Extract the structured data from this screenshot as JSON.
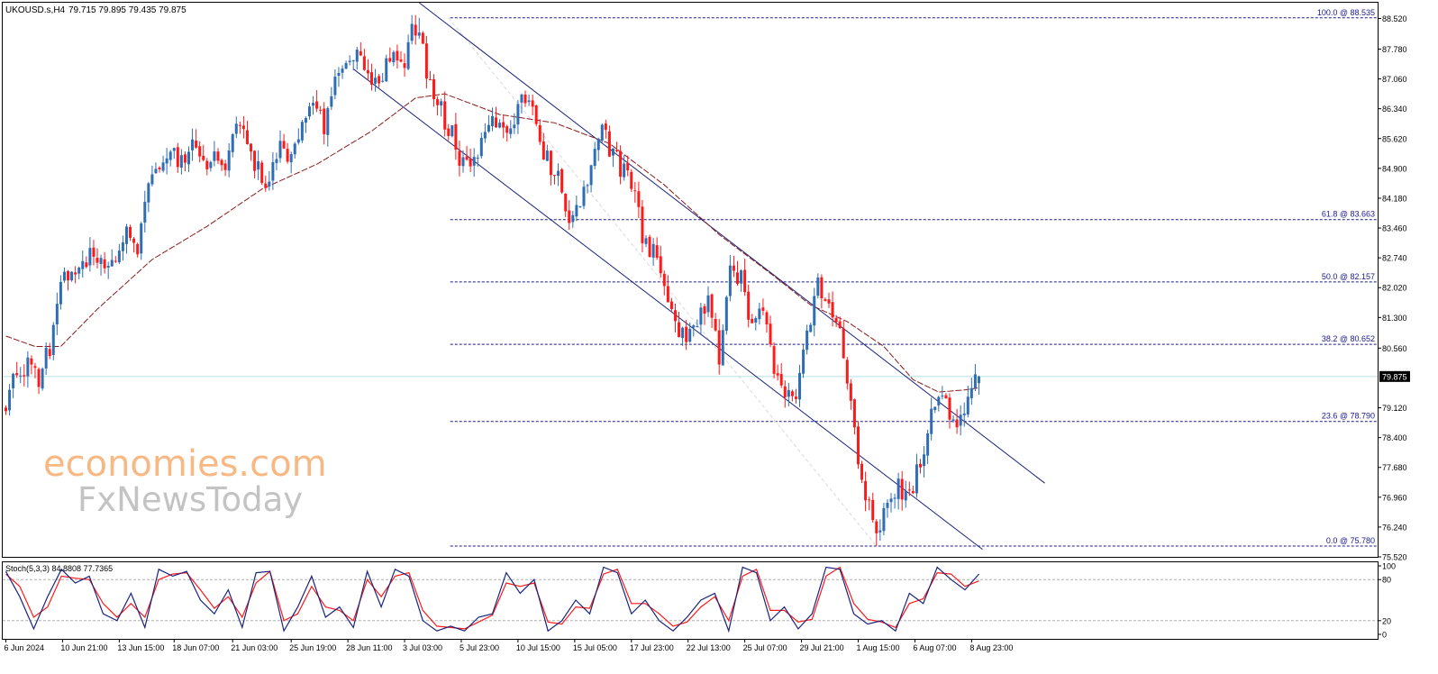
{
  "header": {
    "symbol": "UKOUSD.s,H4",
    "ohlc": "79.715 79.895 79.435 79.875"
  },
  "watermark": {
    "line1": "economies.com",
    "line2": "FxNewsToday"
  },
  "colors": {
    "bull": "#2f6db5",
    "bear": "#ff1a1a",
    "ma": "#8b1a1a",
    "channel": "#1a237e",
    "fib": "#1a1a8c",
    "bid_line": "#b8dfe6",
    "stoch_main": "#1a237e",
    "stoch_signal": "#ff1a1a",
    "watermark_orange": "#f5a05a",
    "watermark_gray": "#b8b8b8"
  },
  "chart_data": [
    {
      "type": "candlestick",
      "timeframe": "H4",
      "ylim": [
        75.52,
        88.9
      ],
      "y_ticks": [
        "88.520",
        "87.780",
        "87.060",
        "86.340",
        "85.620",
        "84.900",
        "84.180",
        "83.460",
        "82.740",
        "82.020",
        "81.300",
        "80.560",
        "79.120",
        "78.400",
        "77.680",
        "76.960",
        "76.240",
        "75.520"
      ],
      "current_price": "79.875",
      "x_ticks": [
        "6 Jun 2024",
        "10 Jun 21:00",
        "13 Jun 15:00",
        "18 Jun 07:00",
        "21 Jun 03:00",
        "25 Jun 19:00",
        "28 Jun 11:00",
        "3 Jul 03:00",
        "5 Jul 23:00",
        "10 Jul 15:00",
        "15 Jul 05:00",
        "17 Jul 23:00",
        "22 Jul 13:00",
        "25 Jul 07:00",
        "29 Jul 21:00",
        "1 Aug 15:00",
        "6 Aug 07:00",
        "8 Aug 23:00"
      ],
      "fibonacci": [
        {
          "label": "100.0 @ 88.535",
          "price": 88.535
        },
        {
          "label": "61.8 @ 83.663",
          "price": 83.663
        },
        {
          "label": "50.0 @ 82.157",
          "price": 82.157
        },
        {
          "label": "38.2 @ 80.652",
          "price": 80.652
        },
        {
          "label": "23.6 @ 78.790",
          "price": 78.79
        },
        {
          "label": "0.0 @ 75.780",
          "price": 75.78
        }
      ],
      "close_path": [
        [
          0,
          79.2
        ],
        [
          3,
          79.9
        ],
        [
          6,
          80.2
        ],
        [
          9,
          79.7
        ],
        [
          12,
          80.6
        ],
        [
          15,
          82.2
        ],
        [
          18,
          82.6
        ],
        [
          21,
          82.4
        ],
        [
          24,
          83.0
        ],
        [
          27,
          82.3
        ],
        [
          30,
          82.6
        ],
        [
          33,
          83.4
        ],
        [
          36,
          82.8
        ],
        [
          39,
          84.5
        ],
        [
          42,
          84.9
        ],
        [
          45,
          85.3
        ],
        [
          48,
          85.0
        ],
        [
          51,
          85.5
        ],
        [
          54,
          85.1
        ],
        [
          57,
          85.2
        ],
        [
          60,
          84.9
        ],
        [
          63,
          85.8
        ],
        [
          66,
          85.5
        ],
        [
          69,
          84.9
        ],
        [
          72,
          84.6
        ],
        [
          75,
          85.3
        ],
        [
          78,
          85.0
        ],
        [
          81,
          85.9
        ],
        [
          84,
          86.6
        ],
        [
          87,
          85.8
        ],
        [
          90,
          87.0
        ],
        [
          93,
          87.4
        ],
        [
          96,
          87.6
        ],
        [
          99,
          87.1
        ],
        [
          102,
          86.9
        ],
        [
          105,
          87.7
        ],
        [
          108,
          87.3
        ],
        [
          111,
          88.2
        ],
        [
          113,
          88.4
        ],
        [
          115,
          87.2
        ],
        [
          118,
          86.5
        ],
        [
          121,
          85.9
        ],
        [
          124,
          85.2
        ],
        [
          127,
          84.7
        ],
        [
          130,
          85.4
        ],
        [
          133,
          86.0
        ],
        [
          136,
          85.8
        ],
        [
          139,
          86.0
        ],
        [
          142,
          86.7
        ],
        [
          145,
          85.9
        ],
        [
          148,
          85.1
        ],
        [
          151,
          84.6
        ],
        [
          154,
          83.7
        ],
        [
          157,
          84.1
        ],
        [
          160,
          85.0
        ],
        [
          163,
          85.9
        ],
        [
          166,
          85.2
        ],
        [
          169,
          84.8
        ],
        [
          172,
          84.6
        ],
        [
          174,
          83.0
        ],
        [
          177,
          82.9
        ],
        [
          180,
          82.2
        ],
        [
          183,
          81.2
        ],
        [
          186,
          80.8
        ],
        [
          189,
          81.3
        ],
        [
          192,
          81.6
        ],
        [
          195,
          80.3
        ],
        [
          198,
          82.3
        ],
        [
          201,
          82.2
        ],
        [
          204,
          81.0
        ],
        [
          207,
          81.6
        ],
        [
          210,
          80.2
        ],
        [
          213,
          79.4
        ],
        [
          216,
          79.2
        ],
        [
          219,
          80.8
        ],
        [
          222,
          82.3
        ],
        [
          225,
          81.5
        ],
        [
          228,
          80.8
        ],
        [
          230,
          79.9
        ],
        [
          233,
          77.8
        ],
        [
          236,
          76.8
        ],
        [
          238,
          75.9
        ],
        [
          241,
          76.7
        ],
        [
          244,
          77.3
        ],
        [
          247,
          76.9
        ],
        [
          250,
          77.8
        ],
        [
          253,
          78.9
        ],
        [
          256,
          79.4
        ],
        [
          259,
          78.6
        ],
        [
          262,
          79.0
        ],
        [
          264,
          79.6
        ],
        [
          266,
          79.875
        ]
      ],
      "moving_average": [
        [
          0,
          80.85
        ],
        [
          8,
          80.6
        ],
        [
          15,
          80.6
        ],
        [
          25,
          81.5
        ],
        [
          40,
          82.7
        ],
        [
          55,
          83.5
        ],
        [
          70,
          84.4
        ],
        [
          85,
          85.0
        ],
        [
          100,
          85.8
        ],
        [
          112,
          86.6
        ],
        [
          120,
          86.7
        ],
        [
          135,
          86.2
        ],
        [
          150,
          86.0
        ],
        [
          165,
          85.5
        ],
        [
          180,
          84.5
        ],
        [
          195,
          83.3
        ],
        [
          210,
          82.3
        ],
        [
          220,
          81.6
        ],
        [
          230,
          81.2
        ],
        [
          240,
          80.6
        ],
        [
          248,
          79.8
        ],
        [
          255,
          79.5
        ],
        [
          262,
          79.55
        ],
        [
          266,
          79.6
        ]
      ],
      "channel": {
        "upper": [
          [
            113,
            88.9
          ],
          [
            284,
            77.3
          ]
        ],
        "lower": [
          [
            95,
            87.3
          ],
          [
            267,
            75.7
          ]
        ]
      },
      "stochastic": {
        "label": "Stoch(5,3,3) 84.8808 77.7365",
        "ylim": [
          0,
          100
        ],
        "levels": [
          "100",
          "80",
          "20",
          "0"
        ],
        "main": [
          [
            0,
            92
          ],
          [
            4,
            55
          ],
          [
            8,
            8
          ],
          [
            12,
            55
          ],
          [
            16,
            95
          ],
          [
            20,
            75
          ],
          [
            24,
            85
          ],
          [
            28,
            30
          ],
          [
            32,
            20
          ],
          [
            36,
            60
          ],
          [
            40,
            10
          ],
          [
            44,
            95
          ],
          [
            48,
            85
          ],
          [
            52,
            92
          ],
          [
            56,
            50
          ],
          [
            60,
            30
          ],
          [
            64,
            65
          ],
          [
            68,
            10
          ],
          [
            72,
            90
          ],
          [
            76,
            92
          ],
          [
            80,
            5
          ],
          [
            84,
            40
          ],
          [
            88,
            85
          ],
          [
            92,
            25
          ],
          [
            96,
            40
          ],
          [
            100,
            10
          ],
          [
            104,
            92
          ],
          [
            108,
            40
          ],
          [
            112,
            95
          ],
          [
            116,
            85
          ],
          [
            120,
            20
          ],
          [
            124,
            5
          ],
          [
            128,
            12
          ],
          [
            132,
            5
          ],
          [
            136,
            25
          ],
          [
            140,
            30
          ],
          [
            144,
            90
          ],
          [
            148,
            60
          ],
          [
            152,
            80
          ],
          [
            156,
            5
          ],
          [
            160,
            20
          ],
          [
            164,
            50
          ],
          [
            168,
            30
          ],
          [
            172,
            98
          ],
          [
            176,
            90
          ],
          [
            180,
            30
          ],
          [
            184,
            50
          ],
          [
            188,
            20
          ],
          [
            192,
            5
          ],
          [
            196,
            25
          ],
          [
            200,
            50
          ],
          [
            204,
            60
          ],
          [
            208,
            5
          ],
          [
            212,
            98
          ],
          [
            216,
            90
          ],
          [
            220,
            20
          ],
          [
            224,
            40
          ],
          [
            228,
            8
          ],
          [
            232,
            30
          ],
          [
            236,
            98
          ],
          [
            240,
            95
          ],
          [
            244,
            30
          ],
          [
            248,
            15
          ],
          [
            252,
            20
          ],
          [
            256,
            5
          ],
          [
            260,
            60
          ],
          [
            264,
            45
          ],
          [
            268,
            98
          ],
          [
            272,
            80
          ],
          [
            276,
            65
          ],
          [
            280,
            88
          ]
        ],
        "signal": [
          [
            0,
            88
          ],
          [
            4,
            70
          ],
          [
            8,
            25
          ],
          [
            12,
            40
          ],
          [
            16,
            85
          ],
          [
            20,
            82
          ],
          [
            24,
            80
          ],
          [
            28,
            45
          ],
          [
            32,
            25
          ],
          [
            36,
            45
          ],
          [
            40,
            25
          ],
          [
            44,
            80
          ],
          [
            48,
            88
          ],
          [
            52,
            90
          ],
          [
            56,
            65
          ],
          [
            60,
            38
          ],
          [
            64,
            55
          ],
          [
            68,
            25
          ],
          [
            72,
            75
          ],
          [
            76,
            92
          ],
          [
            80,
            20
          ],
          [
            84,
            30
          ],
          [
            88,
            70
          ],
          [
            92,
            40
          ],
          [
            96,
            35
          ],
          [
            100,
            20
          ],
          [
            104,
            80
          ],
          [
            108,
            55
          ],
          [
            112,
            85
          ],
          [
            116,
            90
          ],
          [
            120,
            35
          ],
          [
            124,
            12
          ],
          [
            128,
            10
          ],
          [
            132,
            8
          ],
          [
            136,
            18
          ],
          [
            140,
            28
          ],
          [
            144,
            75
          ],
          [
            148,
            70
          ],
          [
            152,
            75
          ],
          [
            156,
            18
          ],
          [
            160,
            15
          ],
          [
            164,
            40
          ],
          [
            168,
            38
          ],
          [
            172,
            88
          ],
          [
            176,
            95
          ],
          [
            180,
            45
          ],
          [
            184,
            45
          ],
          [
            188,
            30
          ],
          [
            192,
            12
          ],
          [
            196,
            18
          ],
          [
            200,
            40
          ],
          [
            204,
            55
          ],
          [
            208,
            20
          ],
          [
            212,
            85
          ],
          [
            216,
            95
          ],
          [
            220,
            35
          ],
          [
            224,
            35
          ],
          [
            228,
            18
          ],
          [
            232,
            22
          ],
          [
            236,
            85
          ],
          [
            240,
            98
          ],
          [
            244,
            45
          ],
          [
            248,
            22
          ],
          [
            252,
            18
          ],
          [
            256,
            10
          ],
          [
            260,
            45
          ],
          [
            264,
            52
          ],
          [
            268,
            90
          ],
          [
            272,
            88
          ],
          [
            276,
            70
          ],
          [
            280,
            78
          ]
        ]
      }
    }
  ]
}
